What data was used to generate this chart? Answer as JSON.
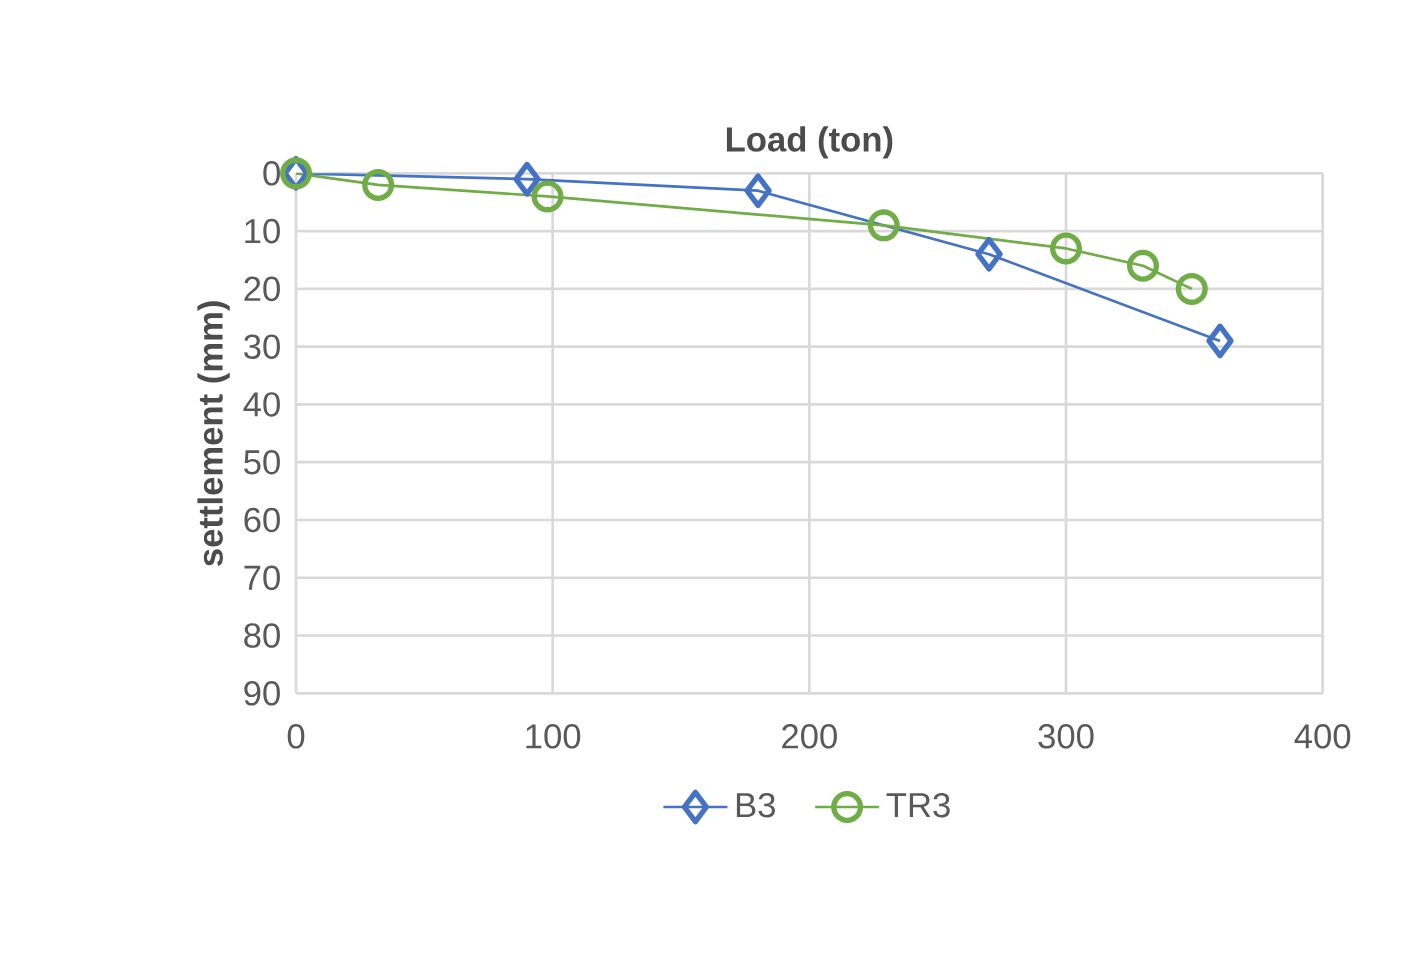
{
  "chart_data": {
    "type": "line",
    "xlabel": "Load (ton)",
    "ylabel": "settlement (mm)",
    "xlim": [
      0,
      400
    ],
    "xticks": [
      0,
      100,
      200,
      300,
      400
    ],
    "ylim": [
      90,
      0
    ],
    "yticks": [
      0,
      10,
      20,
      30,
      40,
      50,
      60,
      70,
      80,
      90
    ],
    "grid": true,
    "legend": "bottom",
    "series": [
      {
        "name": "B3",
        "color": "#4472c4",
        "marker": "diamond",
        "x": [
          0,
          90,
          180,
          270,
          360
        ],
        "values": [
          0,
          1,
          3,
          14,
          29
        ]
      },
      {
        "name": "TR3",
        "color": "#70ad47",
        "marker": "circle",
        "x": [
          0,
          32,
          98,
          229,
          300,
          330,
          349
        ],
        "values": [
          0,
          2,
          4,
          9,
          13,
          16,
          20
        ]
      }
    ]
  }
}
